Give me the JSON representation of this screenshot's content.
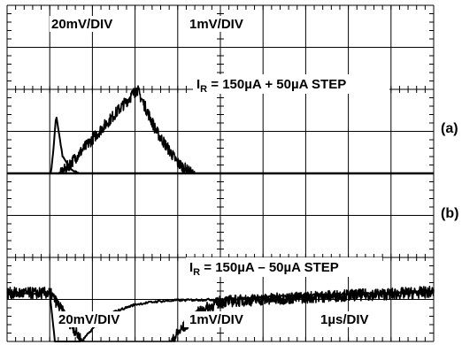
{
  "chart_data": [
    {
      "type": "line",
      "panel": "a",
      "panel_label": "(a)",
      "condition": {
        "prefix": "I",
        "subscript": "R",
        "text": " = 150µA + 50µA STEP"
      },
      "scale_labels": [
        "20mV/DIV",
        "1mV/DIV"
      ],
      "x_divisions": 10,
      "y_divisions": 4,
      "series": [
        {
          "scale": "20mV/DIV",
          "x": [
            0,
            1.0,
            1.08,
            1.15,
            1.3,
            1.5,
            2,
            3,
            4,
            5,
            6,
            7,
            8,
            9,
            10
          ],
          "y": [
            -2.3,
            -2.3,
            -1.5,
            -0.6,
            -1.6,
            -1.9,
            -2.2,
            -2.5,
            -2.62,
            -2.65,
            -2.65,
            -2.65,
            -2.65,
            -2.65,
            -2.65
          ]
        },
        {
          "scale": "1mV/DIV",
          "x": [
            0,
            1.0,
            1.05,
            3.05,
            3.5,
            4,
            4.5,
            5,
            5.5,
            6,
            7,
            8,
            9,
            10
          ],
          "y": [
            -2.3,
            -2.3,
            -2.25,
            0,
            -1.0,
            -1.75,
            -2.15,
            -2.4,
            -2.5,
            -2.55,
            -2.55,
            -2.55,
            -2.55,
            -2.55
          ]
        }
      ]
    },
    {
      "type": "line",
      "panel": "b",
      "panel_label": "(b)",
      "condition": {
        "prefix": "I",
        "subscript": "R",
        "text": " = 150µA – 50µA STEP"
      },
      "scale_labels": [
        "20mV/DIV",
        "1mV/DIV",
        "1µs/DIV"
      ],
      "x_divisions": 10,
      "y_divisions": 4,
      "series": [
        {
          "scale": "20mV/DIV",
          "x": [
            0,
            1.0,
            1.1,
            1.2,
            1.3,
            1.5,
            2,
            2.5,
            3,
            3.5,
            4,
            5,
            6,
            7,
            8,
            9,
            10
          ],
          "y": [
            -0.85,
            -0.85,
            -1.8,
            -2.8,
            -2.65,
            -2.3,
            -1.7,
            -1.3,
            -1.12,
            -1.05,
            -1.02,
            -1.0,
            -0.95,
            -0.9,
            -0.87,
            -0.85,
            -0.82
          ]
        },
        {
          "scale": "1mV/DIV",
          "x": [
            0,
            1.0,
            1.05,
            3.05,
            3.5,
            4,
            4.5,
            5,
            6,
            7,
            8,
            9,
            10
          ],
          "y": [
            -0.85,
            -0.85,
            -0.9,
            -4.0,
            -2.6,
            -1.8,
            -1.3,
            -1.05,
            -1.0,
            -0.95,
            -0.9,
            -0.87,
            -0.82
          ]
        }
      ]
    }
  ]
}
